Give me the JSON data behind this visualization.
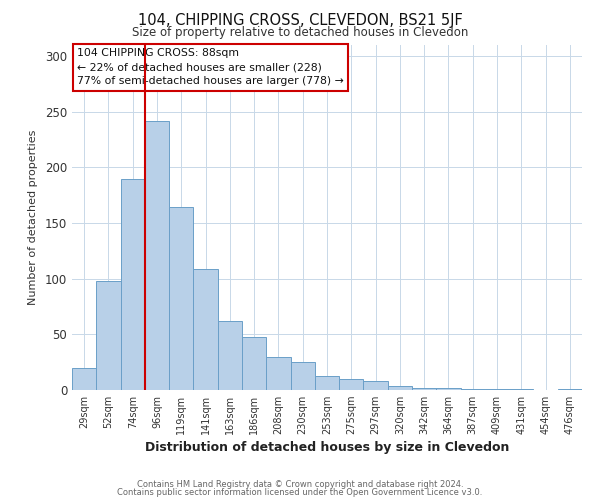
{
  "title": "104, CHIPPING CROSS, CLEVEDON, BS21 5JF",
  "subtitle": "Size of property relative to detached houses in Clevedon",
  "xlabel": "Distribution of detached houses by size in Clevedon",
  "ylabel": "Number of detached properties",
  "bar_labels": [
    "29sqm",
    "52sqm",
    "74sqm",
    "96sqm",
    "119sqm",
    "141sqm",
    "163sqm",
    "186sqm",
    "208sqm",
    "230sqm",
    "253sqm",
    "275sqm",
    "297sqm",
    "320sqm",
    "342sqm",
    "364sqm",
    "387sqm",
    "409sqm",
    "431sqm",
    "454sqm",
    "476sqm"
  ],
  "bar_values": [
    20,
    98,
    190,
    242,
    164,
    109,
    62,
    48,
    30,
    25,
    13,
    10,
    8,
    4,
    2,
    2,
    1,
    1,
    1,
    0,
    1
  ],
  "bar_color": "#b8d0e8",
  "bar_edgecolor": "#6a9fc8",
  "ylim": [
    0,
    310
  ],
  "yticks": [
    0,
    50,
    100,
    150,
    200,
    250,
    300
  ],
  "property_line_color": "#cc0000",
  "annotation_title": "104 CHIPPING CROSS: 88sqm",
  "annotation_line1": "← 22% of detached houses are smaller (228)",
  "annotation_line2": "77% of semi-detached houses are larger (778) →",
  "annotation_box_color": "#cc0000",
  "footer1": "Contains HM Land Registry data © Crown copyright and database right 2024.",
  "footer2": "Contains public sector information licensed under the Open Government Licence v3.0.",
  "background_color": "#ffffff",
  "grid_color": "#c8d8e8"
}
